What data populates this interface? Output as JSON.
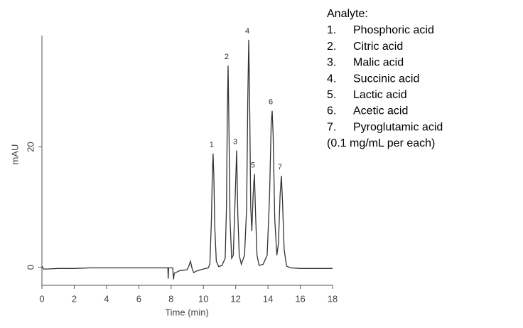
{
  "chart_data": {
    "type": "line",
    "x_label": "Time (min)",
    "y_label": "mAU",
    "xlim": [
      0,
      18
    ],
    "xticks": [
      0,
      2,
      4,
      6,
      8,
      10,
      12,
      14,
      16,
      18
    ],
    "ylim": [
      -3,
      38.5
    ],
    "yticks": [
      0,
      20
    ],
    "series": [
      {
        "color": "#333333",
        "x": [
          0,
          0.1,
          0.3,
          1,
          2,
          3,
          4,
          5,
          6,
          7,
          7.8,
          7.82,
          7.85,
          8.1,
          8.15,
          8.2,
          8.5,
          9.0,
          9.1,
          9.2,
          9.3,
          9.4,
          9.6,
          10.0,
          10.3,
          10.4,
          10.5,
          10.55,
          10.6,
          10.65,
          10.7,
          10.8,
          10.95,
          11.15,
          11.35,
          11.43,
          11.48,
          11.53,
          11.58,
          11.65,
          11.75,
          11.85,
          11.95,
          12.06,
          12.13,
          12.22,
          12.35,
          12.55,
          12.68,
          12.75,
          12.81,
          12.87,
          12.93,
          13.0,
          13.08,
          13.16,
          13.23,
          13.32,
          13.45,
          13.7,
          13.95,
          14.1,
          14.2,
          14.26,
          14.32,
          14.42,
          14.55,
          14.65,
          14.75,
          14.83,
          14.9,
          15.0,
          15.15,
          15.4,
          16,
          17,
          18
        ],
        "values": [
          0.2,
          -0.3,
          -0.3,
          -0.2,
          -0.2,
          -0.1,
          -0.1,
          -0.1,
          -0.1,
          -0.1,
          -0.1,
          -1.9,
          -0.1,
          -0.1,
          -2.0,
          -1.0,
          -0.6,
          -0.4,
          0.2,
          1.0,
          -0.2,
          -0.9,
          -0.6,
          -0.3,
          -0.1,
          0.5,
          8,
          15,
          18.9,
          15,
          7,
          1,
          0.1,
          0.3,
          1.5,
          10,
          25,
          33.5,
          24,
          8,
          1.5,
          2,
          10,
          19.4,
          9,
          2,
          0.5,
          2,
          10,
          28,
          37.8,
          26,
          10,
          6,
          12,
          15.5,
          9,
          2,
          0.3,
          0.5,
          2,
          12,
          24,
          26,
          22,
          8,
          2,
          4,
          12,
          15.2,
          11,
          3,
          0.2,
          -0.1,
          -0.2,
          -0.2,
          -0.2
        ]
      }
    ],
    "peaks": [
      {
        "label": "1",
        "x": 10.6,
        "y": 18.9
      },
      {
        "label": "2",
        "x": 11.53,
        "y": 33.5
      },
      {
        "label": "3",
        "x": 12.06,
        "y": 19.4
      },
      {
        "label": "4",
        "x": 12.81,
        "y": 37.8
      },
      {
        "label": "5",
        "x": 13.16,
        "y": 15.5
      },
      {
        "label": "6",
        "x": 14.26,
        "y": 26
      },
      {
        "label": "7",
        "x": 14.83,
        "y": 15.2
      }
    ],
    "legend_title": "Analyte:",
    "analytes": [
      {
        "number": "1.",
        "name": "Phosphoric acid"
      },
      {
        "number": "2.",
        "name": "Citric acid"
      },
      {
        "number": "3.",
        "name": "Malic acid"
      },
      {
        "number": "4.",
        "name": "Succinic acid"
      },
      {
        "number": "5.",
        "name": "Lactic acid"
      },
      {
        "number": "6.",
        "name": "Acetic acid"
      },
      {
        "number": "7.",
        "name": "Pyroglutamic acid"
      }
    ],
    "note": "(0.1 mg/mL per each)"
  }
}
